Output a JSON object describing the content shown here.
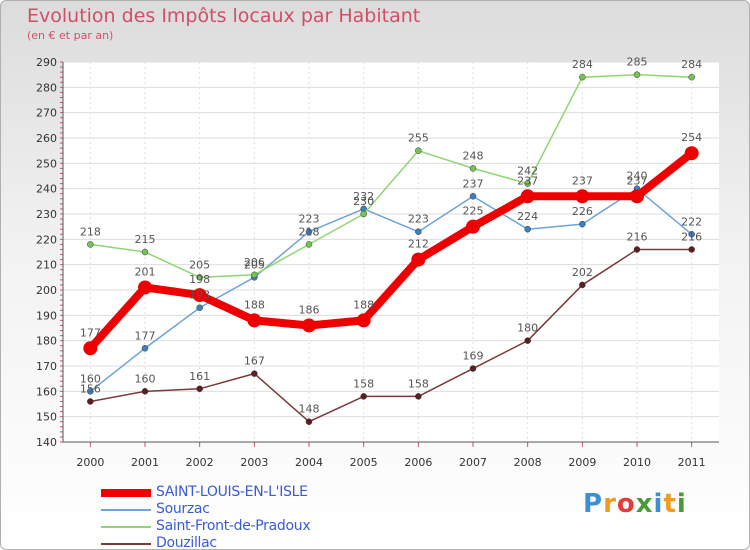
{
  "header": {
    "title": "Evolution des Impôts locaux par Habitant",
    "subtitle": "(en € et par an)"
  },
  "logo": {
    "text": "Proxiti",
    "colors": [
      "#3b8fd6",
      "#f29a1f",
      "#e63b3b",
      "#4a9a3a",
      "#3b8fd6",
      "#f29a1f",
      "#4a9a3a"
    ]
  },
  "chart_data": {
    "type": "line",
    "title": "Evolution des Impôts locaux par Habitant",
    "subtitle": "(en € et par an)",
    "xlabel": "",
    "ylabel": "",
    "x": [
      "2000",
      "2001",
      "2002",
      "2003",
      "2004",
      "2005",
      "2006",
      "2007",
      "2008",
      "2009",
      "2010",
      "2011"
    ],
    "ylim": [
      140,
      290
    ],
    "yticks": [
      140,
      150,
      160,
      170,
      180,
      190,
      200,
      210,
      220,
      230,
      240,
      250,
      260,
      270,
      280,
      290
    ],
    "legend_position": "bottom-left",
    "series": [
      {
        "name": "SAINT-LOUIS-EN-L'ISLE",
        "color": "#ee0000",
        "marker": "#ee0000",
        "bold": true,
        "values": [
          177,
          201,
          198,
          188,
          186,
          188,
          212,
          225,
          237,
          237,
          237,
          254
        ]
      },
      {
        "name": "Sourzac",
        "color": "#6ea4d8",
        "marker": "#3d7fc4",
        "bold": false,
        "values": [
          160,
          177,
          193,
          205,
          223,
          232,
          223,
          237,
          224,
          226,
          240,
          222
        ]
      },
      {
        "name": "Saint-Front-de-Pradoux",
        "color": "#8fd672",
        "marker": "#74c456",
        "bold": false,
        "values": [
          218,
          215,
          205,
          206,
          218,
          230,
          255,
          248,
          242,
          284,
          285,
          284
        ]
      },
      {
        "name": "Douzillac",
        "color": "#7a3a3a",
        "marker": "#5a2020",
        "bold": false,
        "values": [
          156,
          160,
          161,
          167,
          148,
          158,
          158,
          169,
          180,
          202,
          216,
          216
        ]
      }
    ]
  }
}
